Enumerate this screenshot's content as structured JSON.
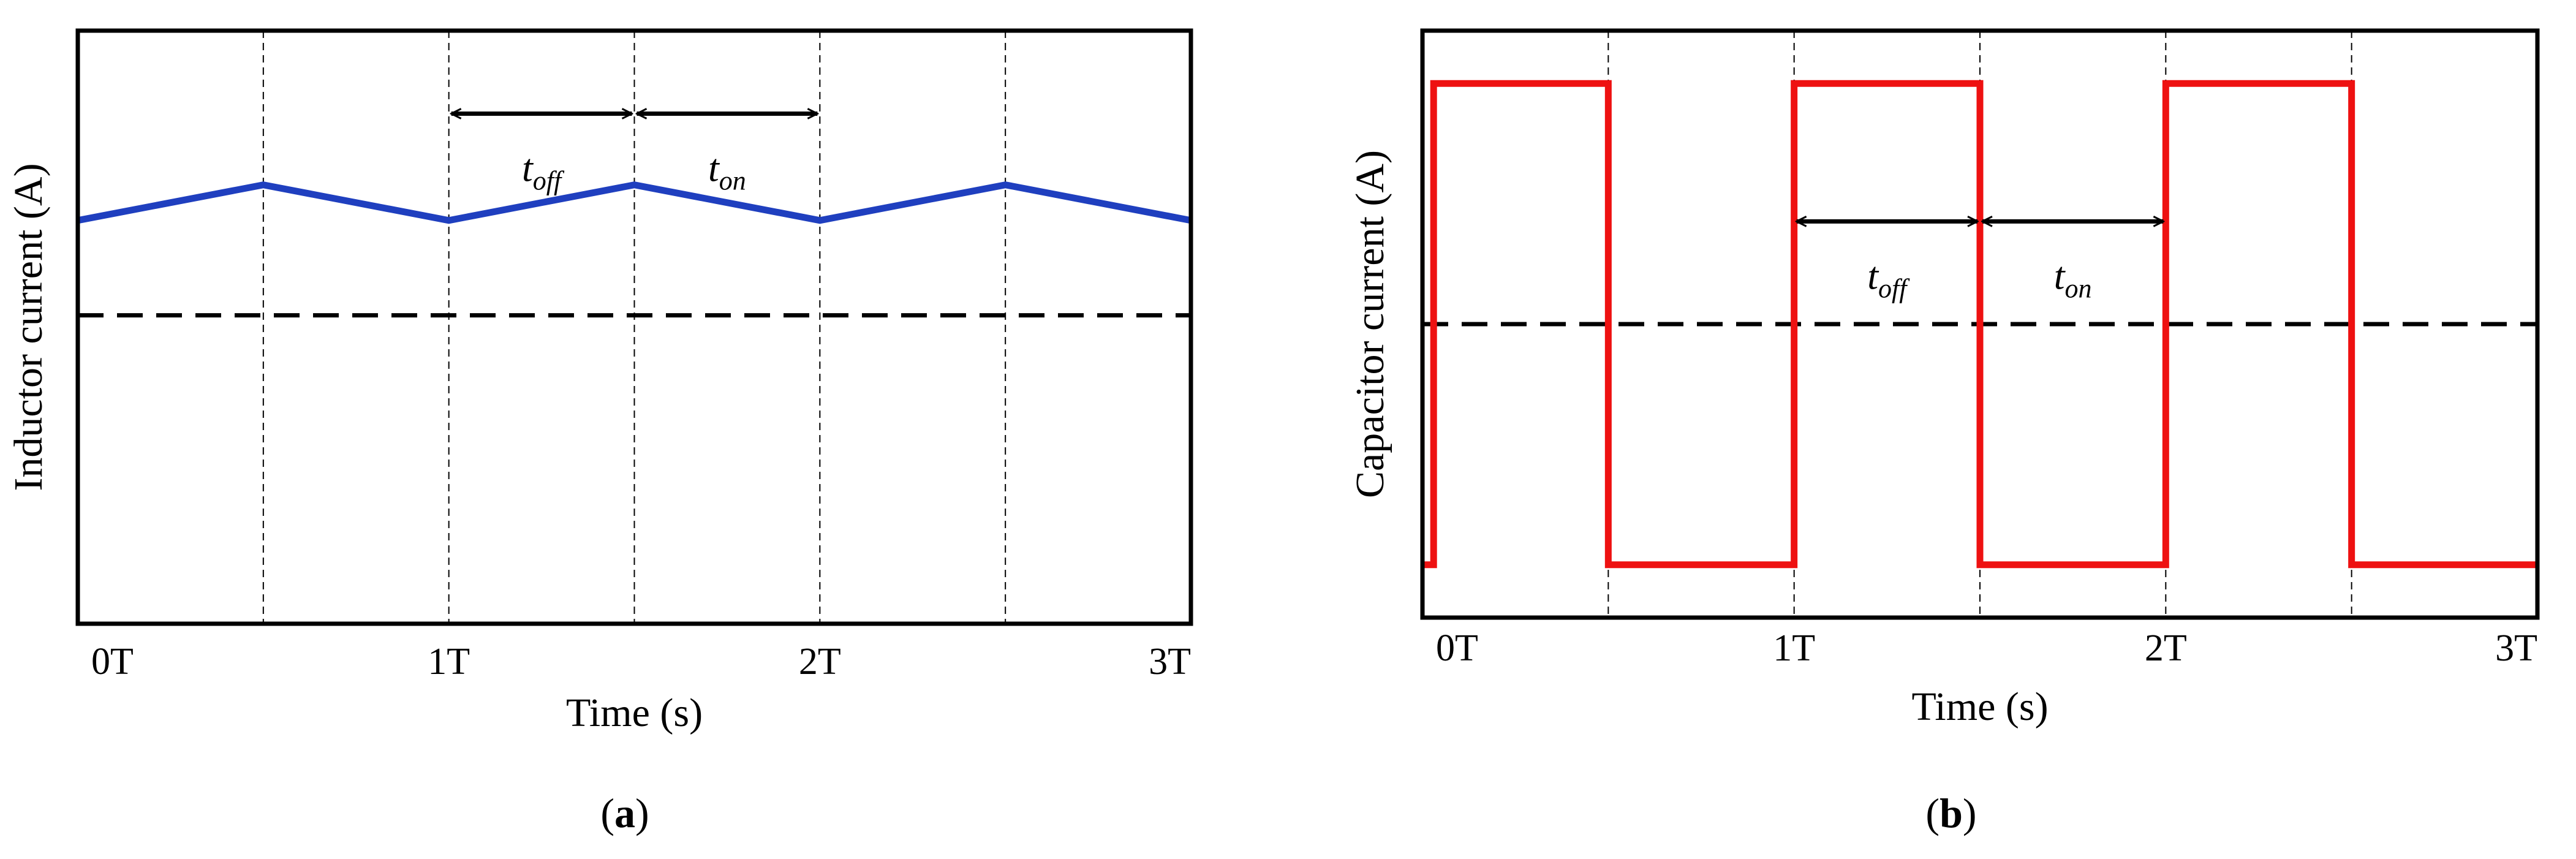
{
  "figure": {
    "panels": [
      {
        "caption_open": "(",
        "caption_letter": "a",
        "caption_close": ")"
      },
      {
        "caption_open": "(",
        "caption_letter": "b",
        "caption_close": ")"
      }
    ]
  },
  "chart_data": [
    {
      "type": "line",
      "title": "",
      "xlabel": "Time (s)",
      "ylabel": "Inductor current (A)",
      "x_unit": "T",
      "xlim": [
        0,
        3
      ],
      "ylim": [
        0,
        1
      ],
      "x_tick_values": [
        0,
        1,
        2,
        3
      ],
      "x_tick_labels": [
        "0T",
        "1T",
        "2T",
        "3T"
      ],
      "vertical_gridlines_at": [
        0.5,
        1,
        1.5,
        2,
        2.5
      ],
      "series": [
        {
          "x": [
            0,
            0.5,
            1,
            1.5,
            2,
            2.5,
            3
          ],
          "y": [
            0.68,
            0.74,
            0.68,
            0.74,
            0.68,
            0.74,
            0.68
          ],
          "color": "#1f3fbf",
          "style": "solid"
        }
      ],
      "reference_lines": [
        {
          "y": 0.52,
          "style": "dashed",
          "color": "#000000"
        }
      ],
      "annotations": [
        {
          "main": "t",
          "sub": "off",
          "x_from": 1,
          "x_to": 1.5,
          "y": 0.86
        },
        {
          "main": "t",
          "sub": "on",
          "x_from": 1.5,
          "x_to": 2,
          "y": 0.86
        }
      ],
      "grid": false,
      "y_ticks_shown": false
    },
    {
      "type": "line",
      "title": "",
      "xlabel": "Time (s)",
      "ylabel": "Capacitor current (A)",
      "x_unit": "T",
      "xlim": [
        0,
        3
      ],
      "ylim": [
        -1,
        1
      ],
      "x_tick_values": [
        0,
        1,
        2,
        3
      ],
      "x_tick_labels": [
        "0T",
        "1T",
        "2T",
        "3T"
      ],
      "vertical_gridlines_at": [
        0.5,
        1,
        1.5,
        2,
        2.5
      ],
      "series": [
        {
          "x": [
            0,
            0.03,
            0.03,
            0.5,
            0.5,
            1,
            1,
            1.5,
            1.5,
            2,
            2,
            2.5,
            2.5,
            3
          ],
          "y": [
            -0.82,
            -0.82,
            0.82,
            0.82,
            -0.82,
            -0.82,
            0.82,
            0.82,
            -0.82,
            -0.82,
            0.82,
            0.82,
            -0.82,
            -0.82
          ],
          "color": "#ee1111",
          "style": "solid"
        }
      ],
      "reference_lines": [
        {
          "y": 0,
          "style": "dashed",
          "color": "#000000"
        }
      ],
      "annotations": [
        {
          "main": "t",
          "sub": "off",
          "x_from": 1,
          "x_to": 1.5,
          "y": 0.35
        },
        {
          "main": "t",
          "sub": "on",
          "x_from": 1.5,
          "x_to": 2,
          "y": 0.35
        }
      ],
      "grid": false,
      "y_ticks_shown": false
    }
  ]
}
